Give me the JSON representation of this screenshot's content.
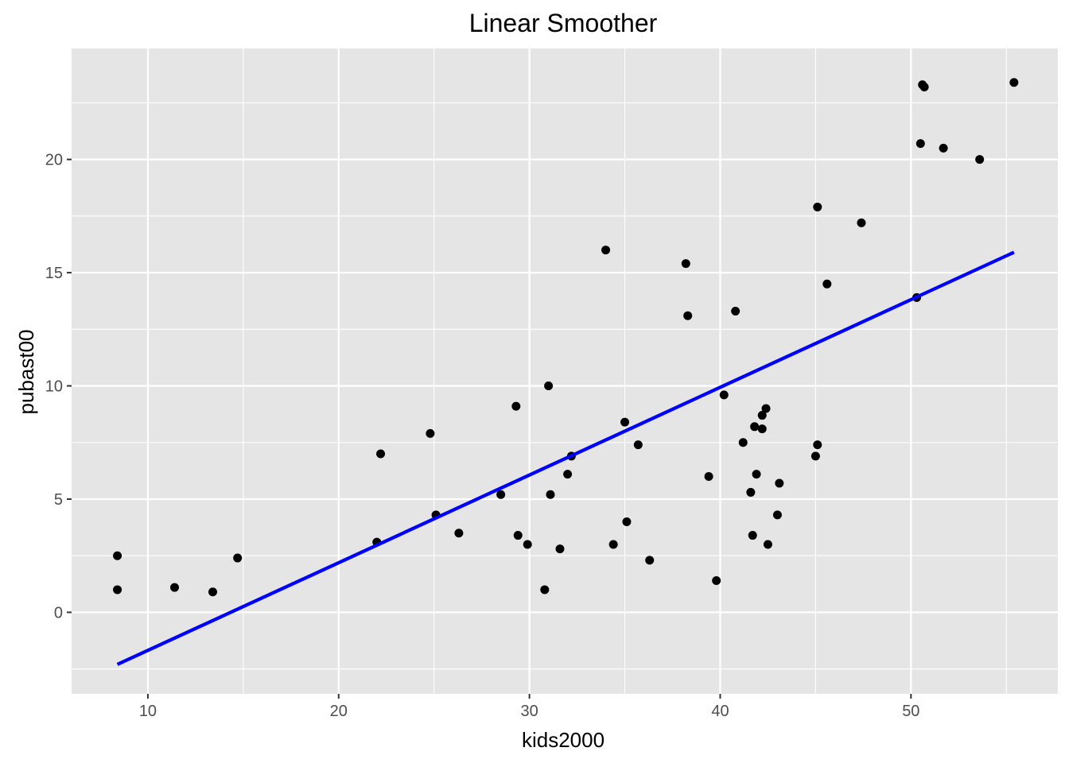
{
  "chart_data": {
    "type": "scatter",
    "title": "Linear Smoother",
    "xlabel": "kids2000",
    "ylabel": "pubast00",
    "xlim": [
      6.0,
      57.7
    ],
    "ylim": [
      -3.6,
      24.9
    ],
    "x_ticks": [
      10,
      20,
      30,
      40,
      50
    ],
    "x_tick_labels": [
      "10",
      "20",
      "30",
      "40",
      "50"
    ],
    "y_ticks": [
      0,
      5,
      10,
      15,
      20
    ],
    "y_tick_labels": [
      "0",
      "5",
      "10",
      "15",
      "20"
    ],
    "grid": true,
    "legend": "none",
    "colors": {
      "panel": "#e5e5e5",
      "grid": "#ffffff",
      "points": "#000000",
      "fit_line": "#0000ff"
    },
    "points": [
      [
        8.4,
        2.5
      ],
      [
        8.4,
        1.0
      ],
      [
        11.4,
        1.1
      ],
      [
        13.4,
        0.9
      ],
      [
        14.7,
        2.4
      ],
      [
        22.0,
        3.1
      ],
      [
        22.2,
        7.0
      ],
      [
        24.8,
        7.9
      ],
      [
        25.1,
        4.3
      ],
      [
        26.3,
        3.5
      ],
      [
        28.5,
        5.2
      ],
      [
        29.3,
        9.1
      ],
      [
        29.4,
        3.4
      ],
      [
        29.9,
        3.0
      ],
      [
        30.8,
        1.0
      ],
      [
        31.0,
        10.0
      ],
      [
        31.1,
        5.2
      ],
      [
        31.6,
        2.8
      ],
      [
        32.0,
        6.1
      ],
      [
        32.2,
        6.9
      ],
      [
        34.0,
        16.0
      ],
      [
        34.4,
        3.0
      ],
      [
        35.0,
        8.4
      ],
      [
        35.1,
        4.0
      ],
      [
        35.7,
        7.4
      ],
      [
        36.3,
        2.3
      ],
      [
        38.2,
        15.4
      ],
      [
        38.3,
        13.1
      ],
      [
        39.4,
        6.0
      ],
      [
        39.8,
        1.4
      ],
      [
        40.2,
        9.6
      ],
      [
        40.8,
        13.3
      ],
      [
        41.2,
        7.5
      ],
      [
        41.6,
        5.3
      ],
      [
        41.7,
        3.4
      ],
      [
        41.8,
        8.2
      ],
      [
        41.9,
        6.1
      ],
      [
        42.2,
        8.1
      ],
      [
        42.2,
        8.7
      ],
      [
        42.4,
        9.0
      ],
      [
        42.5,
        3.0
      ],
      [
        43.0,
        4.3
      ],
      [
        43.1,
        5.7
      ],
      [
        45.0,
        6.9
      ],
      [
        45.1,
        17.9
      ],
      [
        45.1,
        7.4
      ],
      [
        45.6,
        14.5
      ],
      [
        47.4,
        17.2
      ],
      [
        50.3,
        13.9
      ],
      [
        50.5,
        20.7
      ],
      [
        50.6,
        23.3
      ],
      [
        50.7,
        23.2
      ],
      [
        51.7,
        20.5
      ],
      [
        53.6,
        20.0
      ],
      [
        55.4,
        23.4
      ]
    ],
    "fit_line": {
      "x": [
        8.4,
        55.4
      ],
      "y": [
        -2.3,
        15.9
      ]
    }
  }
}
